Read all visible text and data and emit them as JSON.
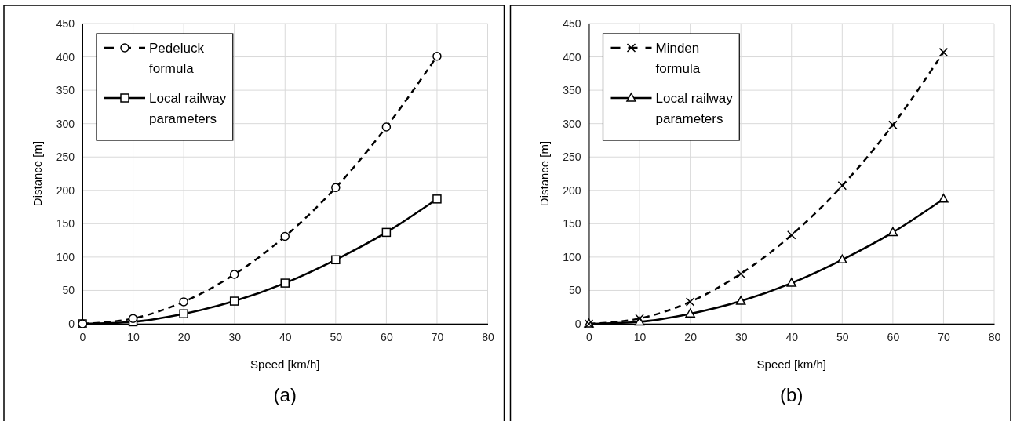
{
  "chart_data": [
    {
      "type": "line",
      "title": "(a)",
      "xlabel": "Speed [km/h]",
      "ylabel": "Distance [m]",
      "x": [
        0,
        10,
        20,
        30,
        40,
        50,
        60,
        70
      ],
      "series": [
        {
          "name": "Pedeluck formula",
          "color": "#000000",
          "marker": "circle",
          "line_style": "dashed",
          "values": [
            0,
            8,
            33,
            74,
            131,
            204,
            295,
            401
          ]
        },
        {
          "name": "Local railway parameters",
          "color": "#000000",
          "marker": "square",
          "line_style": "solid",
          "values": [
            0,
            3,
            15,
            34,
            61,
            96,
            137,
            187
          ]
        }
      ],
      "xlim": [
        0,
        80
      ],
      "xticks": [
        0,
        10,
        20,
        30,
        40,
        50,
        60,
        70,
        80
      ],
      "ylim": [
        0,
        450
      ],
      "yticks": [
        0,
        50,
        100,
        150,
        200,
        250,
        300,
        350,
        400,
        450
      ],
      "grid": true,
      "legend": "top left"
    },
    {
      "type": "line",
      "title": "(b)",
      "xlabel": "Speed [km/h]",
      "ylabel": "Distance [m]",
      "x": [
        0,
        10,
        20,
        30,
        40,
        50,
        60,
        70
      ],
      "series": [
        {
          "name": "Minden formula",
          "color": "#000000",
          "marker": "cross",
          "line_style": "dashed",
          "values": [
            0,
            8,
            33,
            75,
            133,
            207,
            298,
            407
          ]
        },
        {
          "name": "Local railway parameters",
          "color": "#000000",
          "marker": "triangle",
          "line_style": "solid",
          "values": [
            0,
            3,
            15,
            34,
            61,
            96,
            137,
            187
          ]
        }
      ],
      "xlim": [
        0,
        80
      ],
      "xticks": [
        0,
        10,
        20,
        30,
        40,
        50,
        60,
        70,
        80
      ],
      "ylim": [
        0,
        450
      ],
      "yticks": [
        0,
        50,
        100,
        150,
        200,
        250,
        300,
        350,
        400,
        450
      ],
      "grid": true,
      "legend": "top left"
    }
  ]
}
